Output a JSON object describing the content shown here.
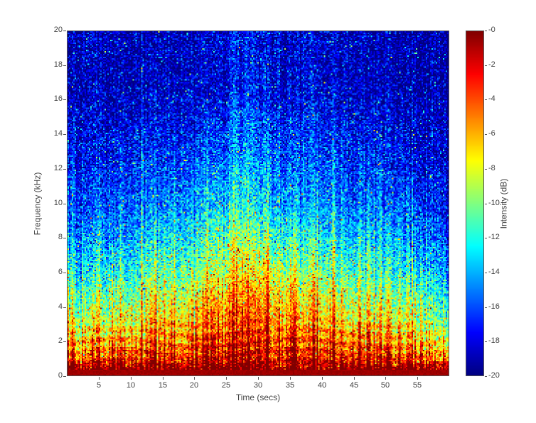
{
  "figure": {
    "background": "#ffffff",
    "text_color": "#434343",
    "axis_line_color": "#565656"
  },
  "chart_data": {
    "type": "heatmap",
    "subtype": "spectrogram",
    "title": "",
    "xlabel": "Time (secs)",
    "ylabel": "Frequency (kHz)",
    "colorbar_label": "Intensity (dB)",
    "xlim": [
      0,
      60
    ],
    "ylim": [
      0,
      20
    ],
    "clim": [
      -20,
      0
    ],
    "x_ticks": [
      5,
      10,
      15,
      20,
      25,
      30,
      35,
      40,
      45,
      50,
      55
    ],
    "y_ticks": [
      0,
      2,
      4,
      6,
      8,
      10,
      12,
      14,
      16,
      18,
      20
    ],
    "colorbar_tick_labels": [
      "-0",
      "-2",
      "-4",
      "-6",
      "-8",
      "-10",
      "-12",
      "-14",
      "-16",
      "-18",
      "-20"
    ],
    "colormap": "jet",
    "colormap_stops": [
      "#000080",
      "#0000ff",
      "#0080ff",
      "#00ffff",
      "#80ff80",
      "#ffff00",
      "#ff8000",
      "#ff0000",
      "#800000"
    ],
    "grid": false,
    "legend": "colorbar-right",
    "intensity_grid_db": {
      "comment": "Coarse envelope of spectrogram intensity in dB read from the image; rows = freq_bins (kHz, ascending), cols = time_bins (secs).",
      "time_bins": [
        1,
        5,
        10,
        15,
        20,
        25,
        28,
        31,
        35,
        40,
        45,
        50,
        55,
        59
      ],
      "freq_bins": [
        0.3,
        1,
        2,
        3,
        4.5,
        6,
        8,
        10,
        13,
        17
      ],
      "values": [
        [
          -0.5,
          -0.5,
          -0.5,
          -0.5,
          -0.5,
          -0.5,
          -0.5,
          -0.5,
          -0.5,
          -0.5,
          -0.5,
          -0.5,
          -0.5,
          -0.5
        ],
        [
          -6,
          -5,
          -4.5,
          -4,
          -3.5,
          -3,
          -3,
          -3,
          -3.5,
          -3.5,
          -4,
          -4.5,
          -5,
          -6
        ],
        [
          -8,
          -7,
          -6.5,
          -6,
          -5,
          -4.5,
          -4,
          -4,
          -4.5,
          -5,
          -6,
          -6.5,
          -7,
          -9
        ],
        [
          -10,
          -9,
          -8.5,
          -7.5,
          -6.5,
          -5.5,
          -5,
          -5,
          -6,
          -6.5,
          -8,
          -8.5,
          -9,
          -11
        ],
        [
          -12,
          -11,
          -10.5,
          -9.5,
          -8.5,
          -7,
          -6.5,
          -6.5,
          -7.5,
          -8.5,
          -10,
          -10.5,
          -11,
          -13
        ],
        [
          -14,
          -13,
          -12.5,
          -11.5,
          -10.5,
          -9,
          -8.5,
          -8.5,
          -9.5,
          -10.5,
          -12,
          -12.5,
          -13,
          -15
        ],
        [
          -16,
          -15,
          -14.5,
          -13.5,
          -12.5,
          -11,
          -10.5,
          -11,
          -12,
          -13,
          -14,
          -14.5,
          -15,
          -16.5
        ],
        [
          -17.5,
          -16.5,
          -16,
          -15.5,
          -14.5,
          -13.5,
          -13,
          -13.5,
          -14.5,
          -15,
          -16,
          -16,
          -16.5,
          -18
        ],
        [
          -18.5,
          -18,
          -17.5,
          -17,
          -16.5,
          -15.5,
          -15,
          -15.5,
          -16,
          -16.5,
          -17.5,
          -17.5,
          -18,
          -19
        ],
        [
          -19.5,
          -19.3,
          -19,
          -19,
          -18.7,
          -18,
          -17.8,
          -18,
          -18.3,
          -18.6,
          -19,
          -19,
          -19.3,
          -19.8
        ]
      ]
    }
  }
}
